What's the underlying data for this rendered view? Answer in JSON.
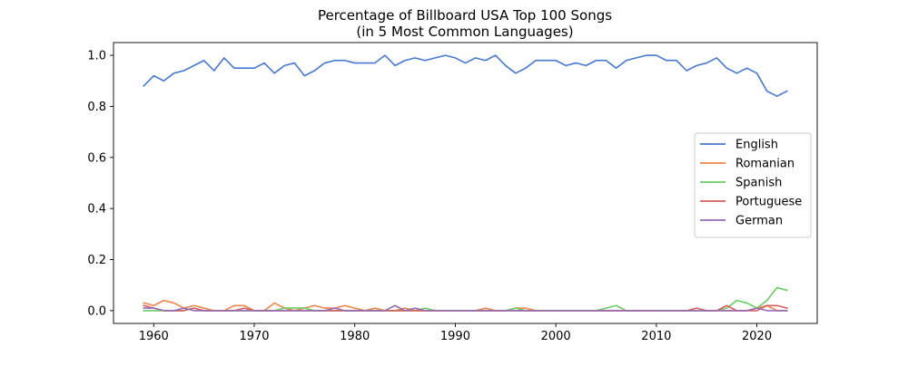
{
  "chart_data": {
    "type": "line",
    "title_line1": "Percentage of Billboard USA Top 100 Songs",
    "title_line2": "(in 5 Most Common Languages)",
    "xlabel": "",
    "ylabel": "",
    "xlim": [
      1956,
      2026
    ],
    "ylim": [
      -0.05,
      1.05
    ],
    "x_ticks": [
      1960,
      1970,
      1980,
      1990,
      2000,
      2010,
      2020
    ],
    "y_ticks": [
      0.0,
      0.2,
      0.4,
      0.6,
      0.8,
      1.0
    ],
    "y_tick_labels": [
      "0.0",
      "0.2",
      "0.4",
      "0.6",
      "0.8",
      "1.0"
    ],
    "grid": false,
    "legend_position": "center-right",
    "x": [
      1959,
      1960,
      1961,
      1962,
      1963,
      1964,
      1965,
      1966,
      1967,
      1968,
      1969,
      1970,
      1971,
      1972,
      1973,
      1974,
      1975,
      1976,
      1977,
      1978,
      1979,
      1980,
      1981,
      1982,
      1983,
      1984,
      1985,
      1986,
      1987,
      1988,
      1989,
      1990,
      1991,
      1992,
      1993,
      1994,
      1995,
      1996,
      1997,
      1998,
      1999,
      2000,
      2001,
      2002,
      2003,
      2004,
      2005,
      2006,
      2007,
      2008,
      2009,
      2010,
      2011,
      2012,
      2013,
      2014,
      2015,
      2016,
      2017,
      2018,
      2019,
      2020,
      2021,
      2022,
      2023
    ],
    "series": [
      {
        "name": "English",
        "color": "#4878d0",
        "values": [
          0.88,
          0.92,
          0.9,
          0.93,
          0.94,
          0.96,
          0.98,
          0.94,
          0.99,
          0.95,
          0.95,
          0.95,
          0.97,
          0.93,
          0.96,
          0.97,
          0.92,
          0.94,
          0.97,
          0.98,
          0.98,
          0.97,
          0.97,
          0.97,
          1.0,
          0.96,
          0.98,
          0.99,
          0.98,
          0.99,
          1.0,
          0.99,
          0.97,
          0.99,
          0.98,
          1.0,
          0.96,
          0.93,
          0.95,
          0.98,
          0.98,
          0.98,
          0.96,
          0.97,
          0.96,
          0.98,
          0.98,
          0.95,
          0.98,
          0.99,
          1.0,
          1.0,
          0.98,
          0.98,
          0.94,
          0.96,
          0.97,
          0.99,
          0.95,
          0.93,
          0.95,
          0.93,
          0.86,
          0.84,
          0.86
        ]
      },
      {
        "name": "Romanian",
        "color": "#ee854a",
        "values": [
          0.03,
          0.02,
          0.04,
          0.03,
          0.01,
          0.02,
          0.01,
          0.0,
          0.0,
          0.02,
          0.02,
          0.0,
          0.0,
          0.03,
          0.01,
          0.0,
          0.01,
          0.02,
          0.01,
          0.01,
          0.02,
          0.01,
          0.0,
          0.01,
          0.0,
          0.0,
          0.01,
          0.0,
          0.0,
          0.0,
          0.0,
          0.0,
          0.0,
          0.0,
          0.01,
          0.0,
          0.0,
          0.01,
          0.01,
          0.0,
          0.0,
          0.0,
          0.0,
          0.0,
          0.0,
          0.0,
          0.0,
          0.0,
          0.0,
          0.0,
          0.0,
          0.0,
          0.0,
          0.0,
          0.0,
          0.0,
          0.0,
          0.0,
          0.0,
          0.0,
          0.0,
          0.01,
          0.02,
          0.0,
          0.0
        ]
      },
      {
        "name": "Spanish",
        "color": "#6acc64",
        "values": [
          0.0,
          0.0,
          0.0,
          0.0,
          0.0,
          0.01,
          0.0,
          0.0,
          0.0,
          0.0,
          0.0,
          0.0,
          0.0,
          0.0,
          0.01,
          0.01,
          0.01,
          0.0,
          0.0,
          0.0,
          0.0,
          0.0,
          0.0,
          0.0,
          0.0,
          0.0,
          0.0,
          0.0,
          0.01,
          0.0,
          0.0,
          0.0,
          0.0,
          0.0,
          0.0,
          0.0,
          0.0,
          0.01,
          0.0,
          0.0,
          0.0,
          0.0,
          0.0,
          0.0,
          0.0,
          0.0,
          0.01,
          0.02,
          0.0,
          0.0,
          0.0,
          0.0,
          0.0,
          0.0,
          0.0,
          0.0,
          0.0,
          0.0,
          0.01,
          0.04,
          0.03,
          0.01,
          0.04,
          0.09,
          0.08
        ]
      },
      {
        "name": "Portuguese",
        "color": "#d65f5f",
        "values": [
          0.02,
          0.01,
          0.0,
          0.0,
          0.0,
          0.01,
          0.0,
          0.0,
          0.0,
          0.0,
          0.01,
          0.0,
          0.0,
          0.0,
          0.0,
          0.0,
          0.0,
          0.0,
          0.0,
          0.0,
          0.0,
          0.0,
          0.0,
          0.0,
          0.0,
          0.0,
          0.0,
          0.0,
          0.0,
          0.0,
          0.0,
          0.0,
          0.0,
          0.0,
          0.0,
          0.0,
          0.0,
          0.0,
          0.0,
          0.0,
          0.0,
          0.0,
          0.0,
          0.0,
          0.0,
          0.0,
          0.0,
          0.0,
          0.0,
          0.0,
          0.0,
          0.0,
          0.0,
          0.0,
          0.0,
          0.01,
          0.0,
          0.0,
          0.02,
          0.0,
          0.0,
          0.0,
          0.02,
          0.02,
          0.01
        ]
      },
      {
        "name": "German",
        "color": "#956cb4",
        "values": [
          0.01,
          0.01,
          0.0,
          0.0,
          0.01,
          0.0,
          0.0,
          0.0,
          0.0,
          0.0,
          0.0,
          0.0,
          0.0,
          0.0,
          0.0,
          0.0,
          0.0,
          0.0,
          0.0,
          0.01,
          0.0,
          0.0,
          0.0,
          0.0,
          0.0,
          0.02,
          0.0,
          0.01,
          0.0,
          0.0,
          0.0,
          0.0,
          0.0,
          0.0,
          0.0,
          0.0,
          0.0,
          0.0,
          0.0,
          0.0,
          0.0,
          0.0,
          0.0,
          0.0,
          0.0,
          0.0,
          0.0,
          0.0,
          0.0,
          0.0,
          0.0,
          0.0,
          0.0,
          0.0,
          0.0,
          0.0,
          0.0,
          0.0,
          0.0,
          0.0,
          0.0,
          0.01,
          0.0,
          0.0,
          0.0
        ]
      }
    ]
  }
}
